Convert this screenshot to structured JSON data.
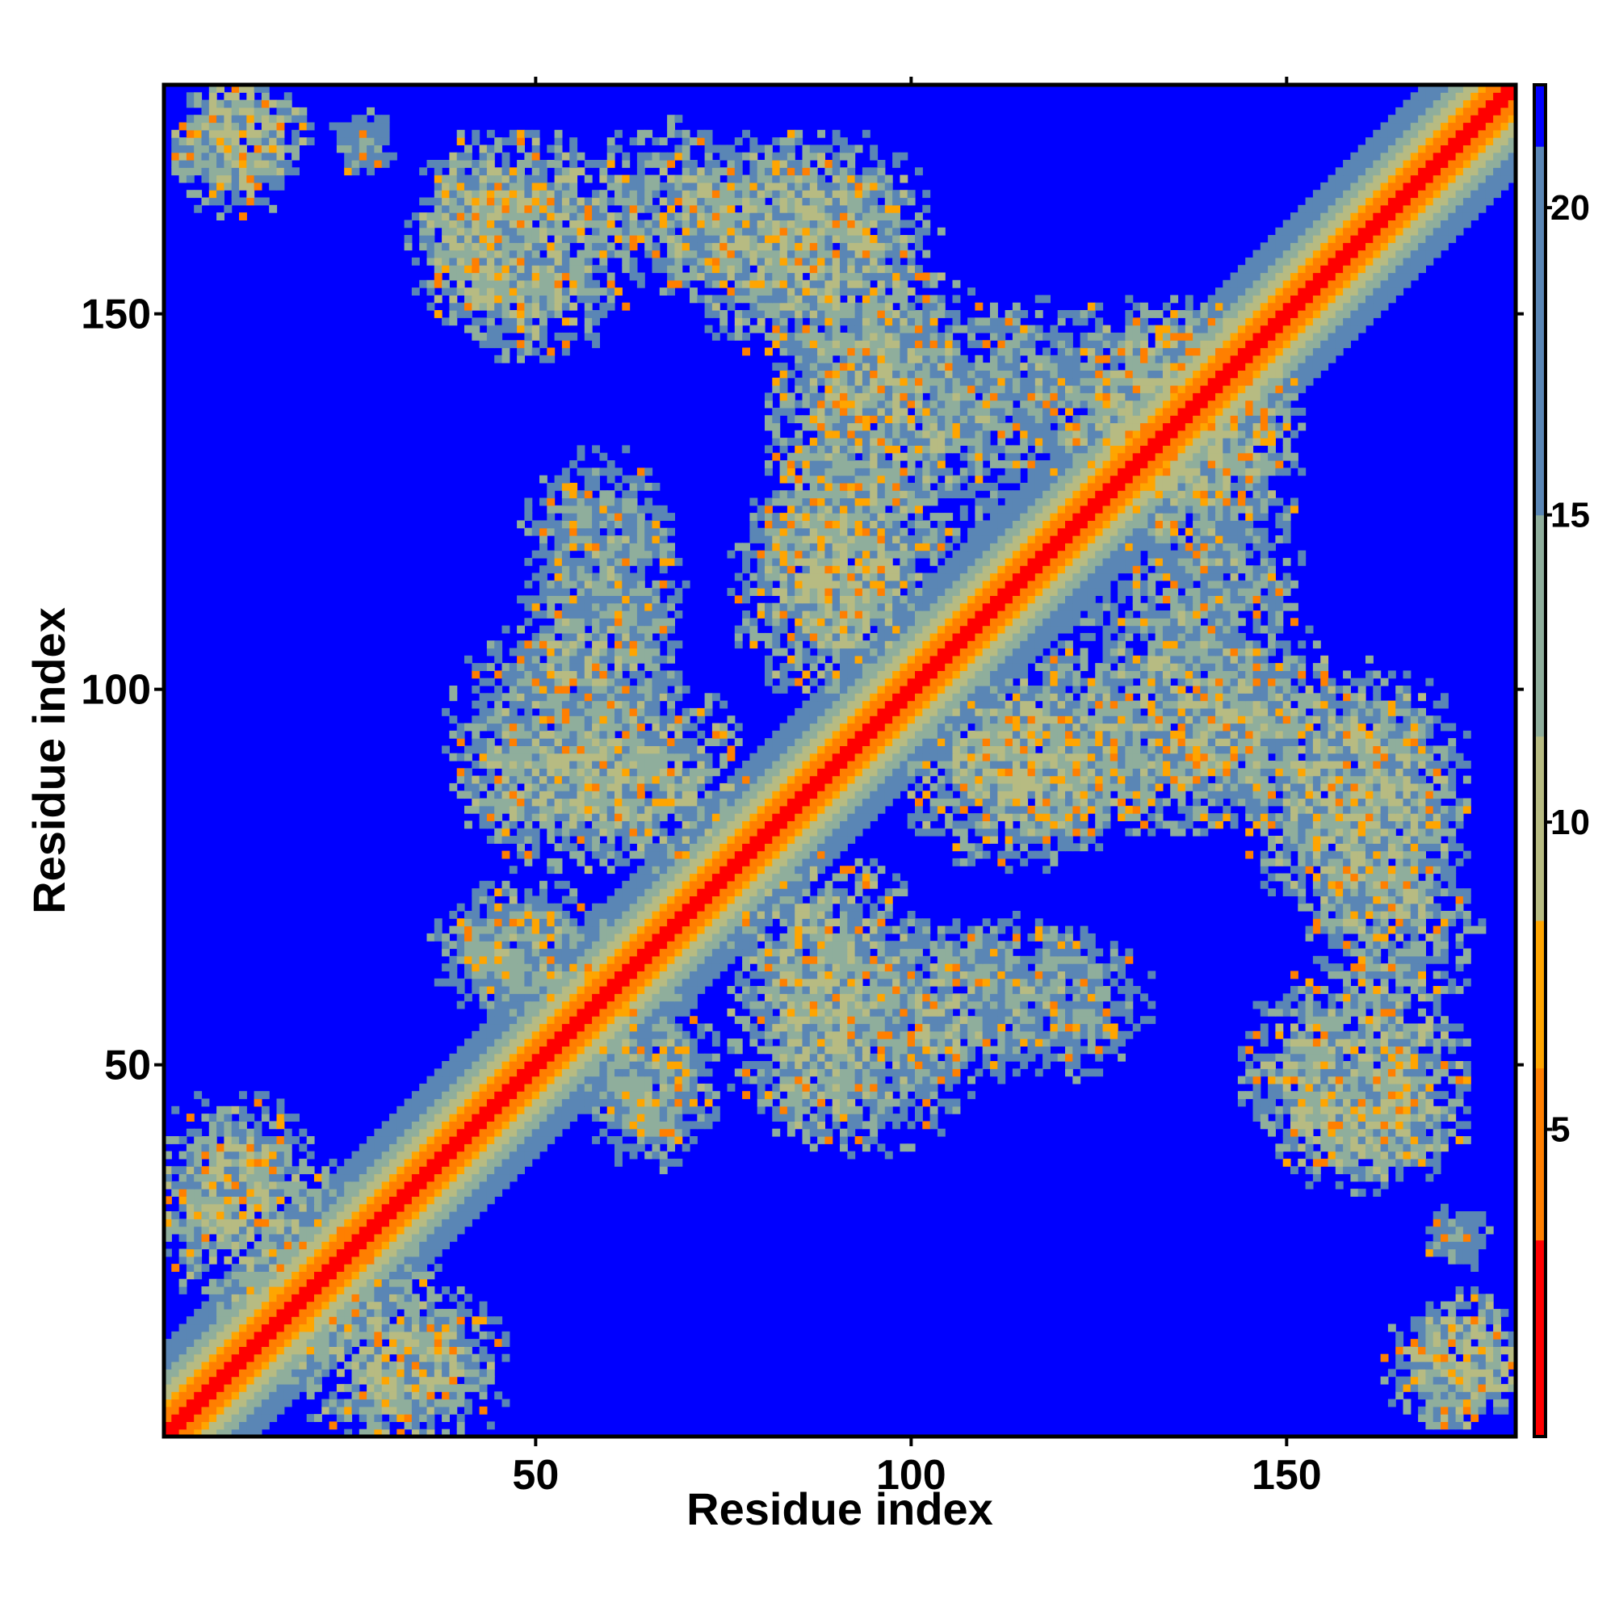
{
  "chart_data": {
    "type": "heatmap",
    "title": "",
    "xlabel": "Residue index",
    "ylabel": "Residue index",
    "n_residues": 180,
    "xlim": [
      1,
      180
    ],
    "ylim": [
      1,
      180
    ],
    "x_ticks": [
      50,
      100,
      150
    ],
    "y_ticks": [
      50,
      100,
      150
    ],
    "x_tick_labels": [
      "50",
      "100",
      "150"
    ],
    "y_tick_labels": [
      "50",
      "100",
      "150"
    ],
    "colorbar": {
      "range": [
        0,
        22
      ],
      "ticks": [
        5,
        10,
        15,
        20
      ],
      "tick_labels": [
        "5",
        "10",
        "15",
        "20"
      ],
      "cutoff": 21,
      "colors": {
        "low": "#ff0000",
        "mid_low": "#ff7f00",
        "mid": "#ffa500",
        "pale": "#b7bb82",
        "mid_high": "#8fae9c",
        "high": "#5a86b5",
        "background": "#0000ff"
      }
    },
    "diagonal": {
      "value": 0,
      "band_halfwidth_residues": 12
    },
    "contact_regions": [
      {
        "x": [
          2,
          18
        ],
        "y": [
          165,
          180
        ],
        "mean_distance": 13
      },
      {
        "x": [
          24,
          30
        ],
        "y": [
          170,
          174
        ],
        "mean_distance": 15
      },
      {
        "x": [
          35,
          53
        ],
        "y": [
          148,
          172
        ],
        "mean_distance": 13
      },
      {
        "x": [
          59,
          76
        ],
        "y": [
          155,
          174
        ],
        "mean_distance": 14
      },
      {
        "x": [
          74,
          102
        ],
        "y": [
          145,
          172
        ],
        "mean_distance": 13
      },
      {
        "x": [
          82,
          115
        ],
        "y": [
          120,
          152
        ],
        "mean_distance": 14
      },
      {
        "x": [
          106,
          130
        ],
        "y": [
          130,
          150
        ],
        "mean_distance": 15
      },
      {
        "x": [
          122,
          148
        ],
        "y": [
          120,
          150
        ],
        "mean_distance": 13
      },
      {
        "x": [
          50,
          68
        ],
        "y": [
          105,
          130
        ],
        "mean_distance": 15
      },
      {
        "x": [
          40,
          62
        ],
        "y": [
          80,
          106
        ],
        "mean_distance": 14
      },
      {
        "x": [
          56,
          76
        ],
        "y": [
          78,
          100
        ],
        "mean_distance": 13
      },
      {
        "x": [
          78,
          98
        ],
        "y": [
          100,
          130
        ],
        "mean_distance": 13
      },
      {
        "x": [
          105,
          128
        ],
        "y": [
          80,
          103
        ],
        "mean_distance": 13
      },
      {
        "x": [
          128,
          152
        ],
        "y": [
          86,
          105
        ],
        "mean_distance": 13
      },
      {
        "x": [
          148,
          172
        ],
        "y": [
          68,
          98
        ],
        "mean_distance": 13
      },
      {
        "x": [
          38,
          55
        ],
        "y": [
          58,
          72
        ],
        "mean_distance": 15
      },
      {
        "x": [
          58,
          74
        ],
        "y": [
          41,
          58
        ],
        "mean_distance": 14
      },
      {
        "x": [
          78,
          96
        ],
        "y": [
          43,
          68
        ],
        "mean_distance": 13
      },
      {
        "x": [
          96,
          114
        ],
        "y": [
          48,
          68
        ],
        "mean_distance": 14
      },
      {
        "x": [
          116,
          126
        ],
        "y": [
          52,
          66
        ],
        "mean_distance": 17
      },
      {
        "x": [
          146,
          172
        ],
        "y": [
          37,
          62
        ],
        "mean_distance": 13
      },
      {
        "x": [
          1,
          18
        ],
        "y": [
          26,
          45
        ],
        "mean_distance": 13
      },
      {
        "x": [
          18,
          40
        ],
        "y": [
          2,
          24
        ],
        "mean_distance": 13
      },
      {
        "x": [
          168,
          180
        ],
        "y": [
          2,
          18
        ],
        "mean_distance": 12
      },
      {
        "x": [
          170,
          176
        ],
        "y": [
          24,
          30
        ],
        "mean_distance": 16
      }
    ]
  }
}
